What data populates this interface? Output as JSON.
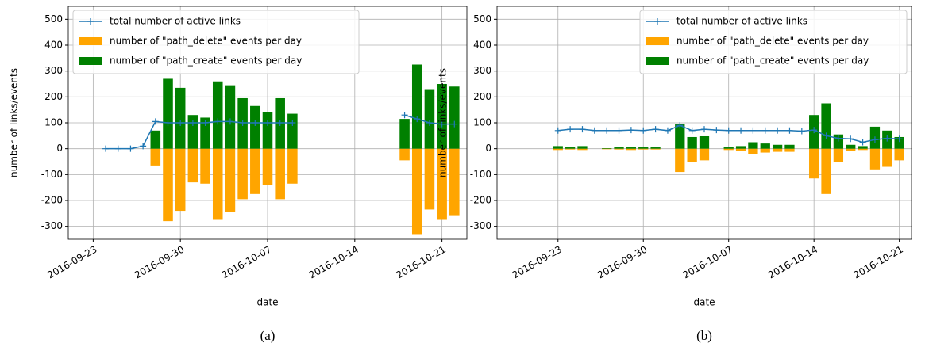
{
  "chart_data": [
    {
      "type": "bar",
      "caption": "(a)",
      "xlabel": "date",
      "ylabel": "number of links/events",
      "xlim": [
        "2016-09-21",
        "2016-10-23"
      ],
      "xticks": [
        "2016-09-23",
        "2016-09-30",
        "2016-10-07",
        "2016-10-14",
        "2016-10-21"
      ],
      "ylim": [
        -350,
        550
      ],
      "yticks": [
        -300,
        -200,
        -100,
        0,
        100,
        200,
        300,
        400,
        500
      ],
      "grid": true,
      "legend": "upper left",
      "x": [
        "2016-09-24",
        "2016-09-25",
        "2016-09-26",
        "2016-09-27",
        "2016-09-28",
        "2016-09-29",
        "2016-09-30",
        "2016-10-01",
        "2016-10-02",
        "2016-10-03",
        "2016-10-04",
        "2016-10-05",
        "2016-10-06",
        "2016-10-07",
        "2016-10-08",
        "2016-10-09",
        "2016-10-10",
        "2016-10-11",
        "2016-10-12",
        "2016-10-13",
        "2016-10-14",
        "2016-10-15",
        "2016-10-16",
        "2016-10-17",
        "2016-10-18",
        "2016-10-19",
        "2016-10-20",
        "2016-10-21",
        "2016-10-22"
      ],
      "series": [
        {
          "name": "total number of active links",
          "type": "line",
          "color": "#1f77b4",
          "values": [
            0,
            0,
            0,
            10,
            105,
            100,
            100,
            100,
            100,
            105,
            105,
            100,
            100,
            100,
            100,
            100,
            null,
            null,
            null,
            null,
            null,
            null,
            null,
            null,
            130,
            115,
            100,
            95,
            95
          ]
        },
        {
          "name": "number of \"path_delete\" events per day",
          "type": "bar",
          "color": "#ffa500",
          "values": [
            null,
            null,
            null,
            null,
            -65,
            -280,
            -240,
            -130,
            -135,
            -275,
            -245,
            -195,
            -175,
            -140,
            -195,
            -135,
            null,
            null,
            null,
            null,
            null,
            null,
            null,
            null,
            -45,
            -330,
            -235,
            -275,
            -260
          ]
        },
        {
          "name": "number of \"path_create\" events per day",
          "type": "bar",
          "color": "#008000",
          "values": [
            null,
            null,
            null,
            null,
            70,
            270,
            235,
            130,
            120,
            260,
            245,
            195,
            165,
            140,
            195,
            135,
            null,
            null,
            null,
            null,
            null,
            null,
            null,
            null,
            115,
            325,
            230,
            250,
            240
          ]
        }
      ]
    },
    {
      "type": "bar",
      "caption": "(b)",
      "xlabel": "date",
      "ylabel": "number of links/events",
      "xlim": [
        "2016-09-18",
        "2016-10-22"
      ],
      "xticks": [
        "2016-09-23",
        "2016-09-30",
        "2016-10-07",
        "2016-10-14",
        "2016-10-21"
      ],
      "ylim": [
        -350,
        550
      ],
      "yticks": [
        -300,
        -200,
        -100,
        0,
        100,
        200,
        300,
        400,
        500
      ],
      "grid": true,
      "legend": "upper right",
      "x": [
        "2016-09-23",
        "2016-09-24",
        "2016-09-25",
        "2016-09-26",
        "2016-09-27",
        "2016-09-28",
        "2016-09-29",
        "2016-09-30",
        "2016-10-01",
        "2016-10-02",
        "2016-10-03",
        "2016-10-04",
        "2016-10-05",
        "2016-10-06",
        "2016-10-07",
        "2016-10-08",
        "2016-10-09",
        "2016-10-10",
        "2016-10-11",
        "2016-10-12",
        "2016-10-13",
        "2016-10-14",
        "2016-10-15",
        "2016-10-16",
        "2016-10-17",
        "2016-10-18",
        "2016-10-19",
        "2016-10-20",
        "2016-10-21"
      ],
      "series": [
        {
          "name": "total number of active links",
          "type": "line",
          "color": "#1f77b4",
          "values": [
            70,
            75,
            75,
            70,
            70,
            70,
            72,
            70,
            75,
            70,
            90,
            70,
            75,
            72,
            70,
            70,
            70,
            70,
            70,
            70,
            68,
            72,
            50,
            40,
            38,
            25,
            35,
            40,
            38
          ]
        },
        {
          "name": "number of \"path_delete\" events per day",
          "type": "bar",
          "color": "#ffa500",
          "values": [
            -5,
            -3,
            -5,
            0,
            -2,
            -3,
            -5,
            -3,
            -3,
            0,
            -90,
            -50,
            -45,
            0,
            -5,
            -8,
            -20,
            -15,
            -12,
            -12,
            0,
            -115,
            -175,
            -50,
            -10,
            -5,
            -80,
            -70,
            -45
          ]
        },
        {
          "name": "number of \"path_create\" events per day",
          "type": "bar",
          "color": "#008000",
          "values": [
            10,
            5,
            10,
            0,
            2,
            5,
            5,
            5,
            5,
            0,
            95,
            45,
            48,
            0,
            5,
            10,
            25,
            20,
            15,
            15,
            0,
            130,
            175,
            55,
            15,
            10,
            85,
            70,
            45
          ]
        }
      ]
    }
  ]
}
